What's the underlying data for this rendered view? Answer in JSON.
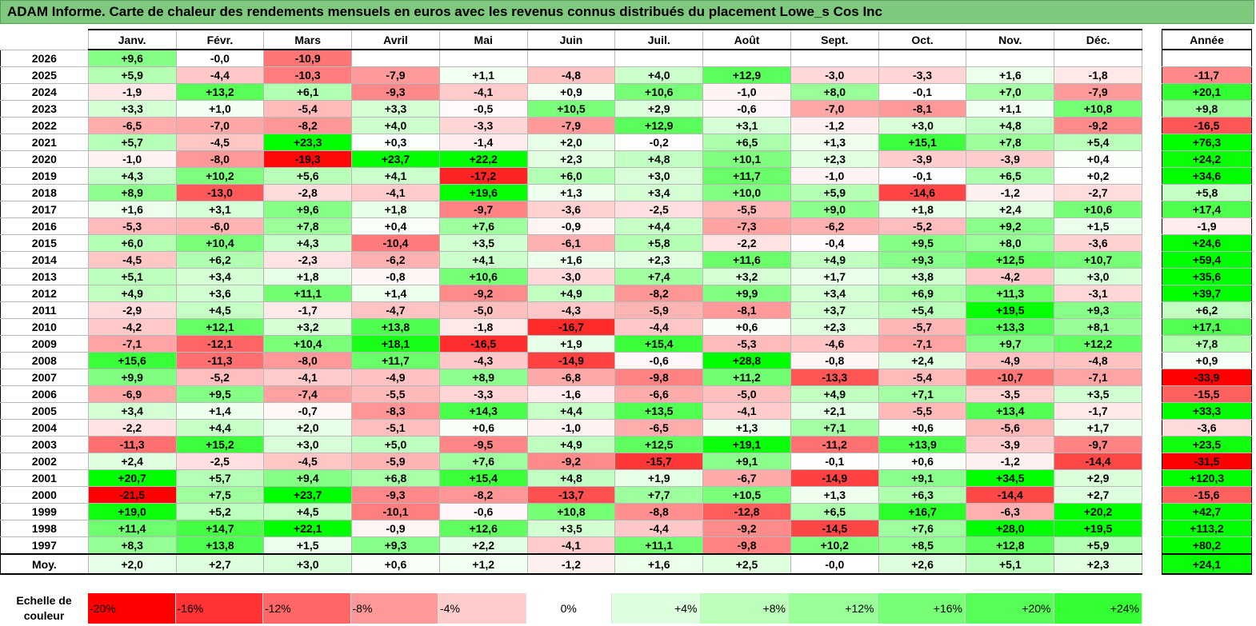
{
  "title": "ADAM Informe. Carte de chaleur des rendements mensuels en euros avec les revenus connus distribués du placement Lowe_s Cos Inc",
  "chart_data": {
    "type": "heatmap",
    "months": [
      "Janv.",
      "Févr.",
      "Mars",
      "Avril",
      "Mai",
      "Juin",
      "Juil.",
      "Août",
      "Sept.",
      "Oct.",
      "Nov.",
      "Déc."
    ],
    "year_header": "Année",
    "rows": [
      {
        "year": "2026",
        "values": [
          "+9,6",
          "-0,0",
          "-10,9",
          "",
          "",
          "",
          "",
          "",
          "",
          "",
          "",
          ""
        ],
        "annual": ""
      },
      {
        "year": "2025",
        "values": [
          "+5,9",
          "-4,4",
          "-10,3",
          "-7,9",
          "+1,1",
          "-4,8",
          "+4,0",
          "+12,9",
          "-3,0",
          "-3,3",
          "+1,6",
          "-1,8"
        ],
        "annual": "-11,7"
      },
      {
        "year": "2024",
        "values": [
          "-1,9",
          "+13,2",
          "+6,1",
          "-9,3",
          "-4,1",
          "+0,9",
          "+10,6",
          "-1,0",
          "+8,0",
          "-0,1",
          "+7,0",
          "-7,9"
        ],
        "annual": "+20,1"
      },
      {
        "year": "2023",
        "values": [
          "+3,3",
          "+1,0",
          "-5,4",
          "+3,3",
          "-0,5",
          "+10,5",
          "+2,9",
          "-0,6",
          "-7,0",
          "-8,1",
          "+1,1",
          "+10,8"
        ],
        "annual": "+9,8"
      },
      {
        "year": "2022",
        "values": [
          "-6,5",
          "-7,0",
          "-8,2",
          "+4,0",
          "-3,3",
          "-7,9",
          "+12,9",
          "+3,1",
          "-1,2",
          "+3,0",
          "+4,8",
          "-9,2"
        ],
        "annual": "-16,5"
      },
      {
        "year": "2021",
        "values": [
          "+5,7",
          "-4,5",
          "+23,3",
          "+0,3",
          "-1,4",
          "+2,0",
          "-0,2",
          "+6,5",
          "+1,3",
          "+15,1",
          "+7,8",
          "+5,4"
        ],
        "annual": "+76,3"
      },
      {
        "year": "2020",
        "values": [
          "-1,0",
          "-8,0",
          "-19,3",
          "+23,7",
          "+22,2",
          "+2,3",
          "+4,8",
          "+10,1",
          "+2,3",
          "-3,9",
          "-3,9",
          "+0,4"
        ],
        "annual": "+24,2"
      },
      {
        "year": "2019",
        "values": [
          "+4,3",
          "+10,2",
          "+5,6",
          "+4,1",
          "-17,2",
          "+6,0",
          "+3,0",
          "+11,7",
          "-1,0",
          "-0,1",
          "+6,5",
          "+0,2"
        ],
        "annual": "+34,6"
      },
      {
        "year": "2018",
        "values": [
          "+8,9",
          "-13,0",
          "-2,8",
          "-4,1",
          "+19,6",
          "+1,3",
          "+3,4",
          "+10,0",
          "+5,9",
          "-14,6",
          "-1,2",
          "-2,7"
        ],
        "annual": "+5,8"
      },
      {
        "year": "2017",
        "values": [
          "+1,6",
          "+3,1",
          "+9,6",
          "+1,8",
          "-9,7",
          "-3,6",
          "-2,5",
          "-5,5",
          "+9,0",
          "+1,8",
          "+2,4",
          "+10,6"
        ],
        "annual": "+17,4"
      },
      {
        "year": "2016",
        "values": [
          "-5,3",
          "-6,0",
          "+7,8",
          "+0,4",
          "+7,6",
          "-0,9",
          "+4,4",
          "-7,3",
          "-6,2",
          "-5,2",
          "+9,2",
          "+1,5"
        ],
        "annual": "-1,9"
      },
      {
        "year": "2015",
        "values": [
          "+6,0",
          "+10,4",
          "+4,3",
          "-10,4",
          "+3,5",
          "-6,1",
          "+5,8",
          "-2,2",
          "-0,4",
          "+9,5",
          "+8,0",
          "-3,6"
        ],
        "annual": "+24,6"
      },
      {
        "year": "2014",
        "values": [
          "-4,5",
          "+6,2",
          "-2,3",
          "-6,2",
          "+4,1",
          "+1,6",
          "+2,3",
          "+11,6",
          "+4,9",
          "+9,3",
          "+12,5",
          "+10,7"
        ],
        "annual": "+59,4"
      },
      {
        "year": "2013",
        "values": [
          "+5,1",
          "+3,4",
          "+1,8",
          "-0,8",
          "+10,6",
          "-3,0",
          "+7,4",
          "+3,2",
          "+1,7",
          "+3,8",
          "-4,2",
          "+3,0"
        ],
        "annual": "+35,6"
      },
      {
        "year": "2012",
        "values": [
          "+4,9",
          "+3,6",
          "+11,1",
          "+1,4",
          "-9,2",
          "+4,9",
          "-8,2",
          "+9,9",
          "+3,4",
          "+6,9",
          "+11,3",
          "-3,1"
        ],
        "annual": "+39,7"
      },
      {
        "year": "2011",
        "values": [
          "-2,9",
          "+4,5",
          "-1,7",
          "-4,7",
          "-5,0",
          "-4,3",
          "-5,9",
          "-8,1",
          "+3,7",
          "+5,4",
          "+19,5",
          "+9,3"
        ],
        "annual": "+6,2"
      },
      {
        "year": "2010",
        "values": [
          "-4,2",
          "+12,1",
          "+3,2",
          "+13,8",
          "-1,8",
          "-16,7",
          "-4,4",
          "+0,6",
          "+2,3",
          "-5,7",
          "+13,3",
          "+8,1"
        ],
        "annual": "+17,1"
      },
      {
        "year": "2009",
        "values": [
          "-7,1",
          "-12,1",
          "+10,4",
          "+18,1",
          "-16,5",
          "+1,9",
          "+15,4",
          "-5,3",
          "-4,6",
          "-7,1",
          "+9,7",
          "+12,2"
        ],
        "annual": "+7,8"
      },
      {
        "year": "2008",
        "values": [
          "+15,6",
          "-11,3",
          "-8,0",
          "+11,7",
          "-4,3",
          "-14,9",
          "-0,6",
          "+28,8",
          "-0,8",
          "+2,4",
          "-4,9",
          "-4,8"
        ],
        "annual": "+0,9"
      },
      {
        "year": "2007",
        "values": [
          "+9,9",
          "-5,2",
          "-4,1",
          "-4,9",
          "+8,9",
          "-6,8",
          "-9,8",
          "+11,2",
          "-13,3",
          "-5,4",
          "-10,7",
          "-7,1"
        ],
        "annual": "-33,9"
      },
      {
        "year": "2006",
        "values": [
          "-6,9",
          "+9,5",
          "-7,4",
          "-5,5",
          "-3,3",
          "-1,6",
          "-6,6",
          "-5,0",
          "+4,9",
          "+7,1",
          "-3,5",
          "+3,5"
        ],
        "annual": "-15,5"
      },
      {
        "year": "2005",
        "values": [
          "+3,4",
          "+1,4",
          "-0,7",
          "-8,3",
          "+14,3",
          "+4,4",
          "+13,5",
          "-4,1",
          "+2,1",
          "-5,5",
          "+13,4",
          "-1,7"
        ],
        "annual": "+33,3"
      },
      {
        "year": "2004",
        "values": [
          "-2,2",
          "+4,4",
          "+2,0",
          "-5,1",
          "+0,6",
          "-1,0",
          "-6,5",
          "+1,3",
          "+7,1",
          "+0,6",
          "-5,6",
          "+1,7"
        ],
        "annual": "-3,6"
      },
      {
        "year": "2003",
        "values": [
          "-11,3",
          "+15,2",
          "+3,0",
          "+5,0",
          "-9,5",
          "+4,9",
          "+12,5",
          "+19,1",
          "-11,2",
          "+13,9",
          "-3,9",
          "-9,7"
        ],
        "annual": "+23,5"
      },
      {
        "year": "2002",
        "values": [
          "+2,4",
          "-2,5",
          "-4,5",
          "-5,9",
          "+7,6",
          "-9,2",
          "-15,7",
          "+9,1",
          "-0,1",
          "+0,6",
          "-1,2",
          "-14,4"
        ],
        "annual": "-31,5"
      },
      {
        "year": "2001",
        "values": [
          "+20,7",
          "+5,7",
          "+9,4",
          "+6,8",
          "+15,4",
          "+4,8",
          "+1,9",
          "-6,7",
          "-14,9",
          "+9,1",
          "+34,5",
          "+2,9"
        ],
        "annual": "+120,3"
      },
      {
        "year": "2000",
        "values": [
          "-21,5",
          "+7,5",
          "+23,7",
          "-9,3",
          "-8,2",
          "-13,7",
          "+7,7",
          "+10,5",
          "+1,3",
          "+6,3",
          "-14,4",
          "+2,7"
        ],
        "annual": "-15,6"
      },
      {
        "year": "1999",
        "values": [
          "+19,0",
          "+5,2",
          "+4,5",
          "-10,1",
          "-0,6",
          "+10,8",
          "-8,8",
          "-12,8",
          "+6,5",
          "+16,7",
          "-6,3",
          "+20,2"
        ],
        "annual": "+42,7"
      },
      {
        "year": "1998",
        "values": [
          "+11,4",
          "+14,7",
          "+22,1",
          "-0,9",
          "+12,6",
          "+3,5",
          "-4,4",
          "-9,2",
          "-14,5",
          "+7,6",
          "+28,0",
          "+19,5"
        ],
        "annual": "+113,2"
      },
      {
        "year": "1997",
        "values": [
          "+8,3",
          "+13,8",
          "+1,5",
          "+9,3",
          "+2,2",
          "-4,1",
          "+11,1",
          "-9,8",
          "+10,2",
          "+8,5",
          "+12,8",
          "+5,9"
        ],
        "annual": "+80,2"
      }
    ],
    "average": {
      "label": "Moy.",
      "values": [
        "+2,0",
        "+2,7",
        "+3,0",
        "+0,6",
        "+1,2",
        "-1,2",
        "+1,6",
        "+2,5",
        "-0,0",
        "+2,6",
        "+5,1",
        "+2,3"
      ],
      "annual": "+24,1"
    },
    "scale": {
      "label": "Echelle de couleur",
      "stops": [
        "-20%",
        "-16%",
        "-12%",
        "-8%",
        "-4%",
        "0%",
        "+4%",
        "+8%",
        "+12%",
        "+16%",
        "+20%",
        "+24%"
      ],
      "stop_values": [
        -20,
        -16,
        -12,
        -8,
        -4,
        0,
        4,
        8,
        12,
        16,
        20,
        24
      ]
    },
    "colors": {
      "negative": "#ff0000",
      "neutral": "#ffffff",
      "positive": "#00ff00"
    }
  }
}
